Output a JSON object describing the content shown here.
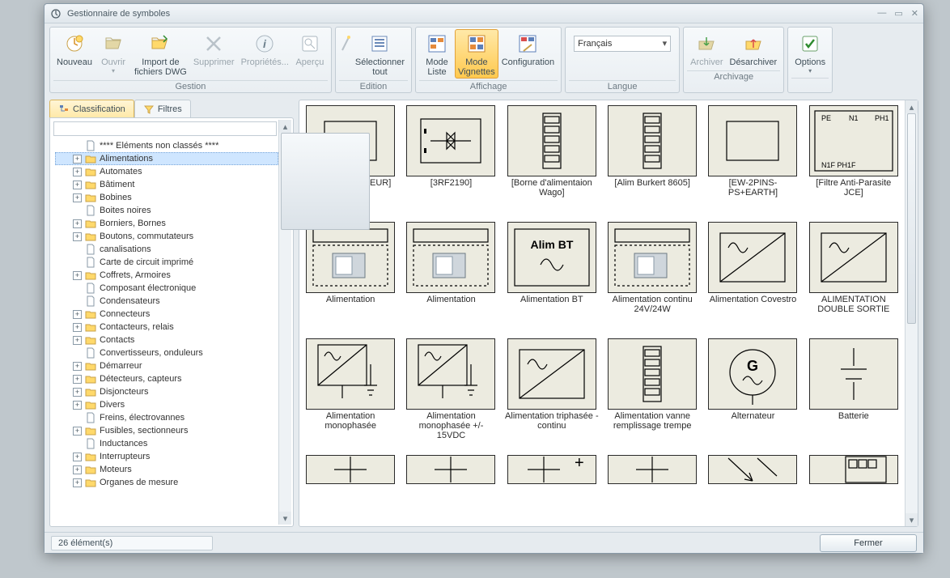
{
  "window": {
    "title": "Gestionnaire de symboles"
  },
  "ribbon": {
    "groups": {
      "gestion": {
        "title": "Gestion",
        "buttons": {
          "nouveau": "Nouveau",
          "ouvrir": "Ouvrir",
          "import": "Import de\nfichiers DWG",
          "supprimer": "Supprimer",
          "proprietes": "Propriétés...",
          "apercu": "Aperçu"
        }
      },
      "edition": {
        "title": "Edition",
        "buttons": {
          "selectall": "Sélectionner\ntout"
        }
      },
      "affichage": {
        "title": "Affichage",
        "buttons": {
          "modeliste": "Mode\nListe",
          "modevignettes": "Mode\nVignettes",
          "config": "Configuration"
        }
      },
      "langue": {
        "title": "Langue",
        "value": "Français"
      },
      "archivage": {
        "title": "Archivage",
        "buttons": {
          "archiver": "Archiver",
          "desarchiver": "Désarchiver"
        }
      },
      "options": {
        "buttons": {
          "options": "Options"
        }
      }
    }
  },
  "tabs": {
    "classification": "Classification",
    "filtres": "Filtres"
  },
  "tree": [
    {
      "label": "**** Eléments non classés ****",
      "icon": "page",
      "exp": "none"
    },
    {
      "label": "Alimentations",
      "icon": "folder",
      "exp": "plus",
      "selected": true
    },
    {
      "label": "Automates",
      "icon": "folder",
      "exp": "plus"
    },
    {
      "label": "Bâtiment",
      "icon": "folder",
      "exp": "plus"
    },
    {
      "label": "Bobines",
      "icon": "folder",
      "exp": "plus"
    },
    {
      "label": "Boites noires",
      "icon": "page",
      "exp": "none"
    },
    {
      "label": "Borniers, Bornes",
      "icon": "folder",
      "exp": "plus"
    },
    {
      "label": "Boutons, commutateurs",
      "icon": "folder",
      "exp": "plus"
    },
    {
      "label": "canalisations",
      "icon": "page",
      "exp": "none"
    },
    {
      "label": "Carte de circuit imprimé",
      "icon": "page",
      "exp": "none"
    },
    {
      "label": "Coffrets, Armoires",
      "icon": "folder",
      "exp": "plus"
    },
    {
      "label": "Composant électronique",
      "icon": "page",
      "exp": "none"
    },
    {
      "label": "Condensateurs",
      "icon": "page",
      "exp": "none"
    },
    {
      "label": "Connecteurs",
      "icon": "folder",
      "exp": "plus"
    },
    {
      "label": "Contacteurs, relais",
      "icon": "folder",
      "exp": "plus"
    },
    {
      "label": "Contacts",
      "icon": "folder",
      "exp": "plus"
    },
    {
      "label": "Convertisseurs, onduleurs",
      "icon": "page",
      "exp": "none"
    },
    {
      "label": "Démarreur",
      "icon": "folder",
      "exp": "plus"
    },
    {
      "label": "Détecteurs, capteurs",
      "icon": "folder",
      "exp": "plus"
    },
    {
      "label": "Disjoncteurs",
      "icon": "folder",
      "exp": "plus"
    },
    {
      "label": "Divers",
      "icon": "folder",
      "exp": "plus"
    },
    {
      "label": "Freins, électrovannes",
      "icon": "page",
      "exp": "none"
    },
    {
      "label": "Fusibles, sectionneurs",
      "icon": "folder",
      "exp": "plus"
    },
    {
      "label": "Inductances",
      "icon": "page",
      "exp": "none"
    },
    {
      "label": "Interrupteurs",
      "icon": "folder",
      "exp": "plus"
    },
    {
      "label": "Moteurs",
      "icon": "folder",
      "exp": "plus"
    },
    {
      "label": "Organes de mesure",
      "icon": "folder",
      "exp": "plus"
    }
  ],
  "thumbs": [
    {
      "label": "[DEPART MOTEUR]",
      "g": "blank"
    },
    {
      "label": "[3RF2190]",
      "g": "triac"
    },
    {
      "label": "[Borne d'alimentaion Wago]",
      "g": "module"
    },
    {
      "label": "[Alim Burkert 8605]",
      "g": "module"
    },
    {
      "label": "[EW-2PINS-PS+EARTH]",
      "g": "blank"
    },
    {
      "label": "[Filtre Anti-Parasite JCE]",
      "g": "filter"
    },
    {
      "label": "Alimentation",
      "g": "psuphoto"
    },
    {
      "label": "Alimentation",
      "g": "psuphoto"
    },
    {
      "label": "Alimentation BT",
      "g": "alimbt"
    },
    {
      "label": "Alimentation continu 24V/24W",
      "g": "psuphoto"
    },
    {
      "label": "Alimentation Covestro",
      "g": "sine-dc"
    },
    {
      "label": "ALIMENTATION DOUBLE SORTIE",
      "g": "sine-dc"
    },
    {
      "label": "Alimentation monophasée",
      "g": "sine-dc-gnd"
    },
    {
      "label": "Alimentation monophasée +/- 15VDC",
      "g": "sine-dc-gnd"
    },
    {
      "label": "Alimentation triphasée - continu",
      "g": "sine-dc"
    },
    {
      "label": "Alimentation vanne remplissage trempe",
      "g": "module"
    },
    {
      "label": "Alternateur",
      "g": "gen"
    },
    {
      "label": "Batterie",
      "g": "batt"
    },
    {
      "label": "",
      "g": "partial"
    },
    {
      "label": "",
      "g": "partial"
    },
    {
      "label": "",
      "g": "partial-plus"
    },
    {
      "label": "",
      "g": "partial"
    },
    {
      "label": "",
      "g": "partial-arrow"
    },
    {
      "label": "",
      "g": "partial-module"
    }
  ],
  "status": {
    "count": "26 élément(s)",
    "close": "Fermer"
  },
  "colors": {
    "accent": "#ffcf5e",
    "panel": "#e6ebef",
    "border": "#c2ccd4",
    "thumb_bg": "#ecebe0"
  }
}
